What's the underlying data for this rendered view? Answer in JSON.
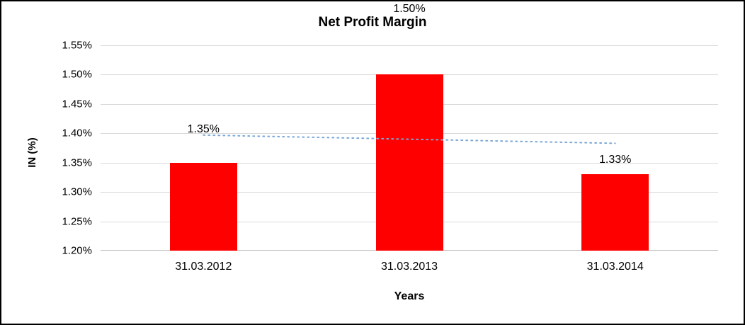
{
  "chart": {
    "title": "Net Profit Margin",
    "xlabel": "Years",
    "ylabel": "IN (%)"
  },
  "chart_data": {
    "type": "bar",
    "title": "Net Profit Margin",
    "xlabel": "Years",
    "ylabel": "IN (%)",
    "categories": [
      "31.03.2012",
      "31.03.2013",
      "31.03.2014"
    ],
    "values": [
      1.35,
      1.5,
      1.33
    ],
    "data_labels": [
      "1.35%",
      "1.50%",
      "1.33%"
    ],
    "ylim": [
      1.2,
      1.55
    ],
    "ytick_step": 0.05,
    "ytick_labels": [
      "1.20%",
      "1.25%",
      "1.30%",
      "1.35%",
      "1.40%",
      "1.45%",
      "1.50%",
      "1.55%"
    ],
    "grid": true,
    "legend_position": "none",
    "bar_color": "#ff0000",
    "gridline_color": "#d9d9d9",
    "trendline": {
      "type": "linear",
      "style": "dotted",
      "color": "#7ba7d7",
      "start_value": 1.397,
      "end_value": 1.383
    }
  }
}
